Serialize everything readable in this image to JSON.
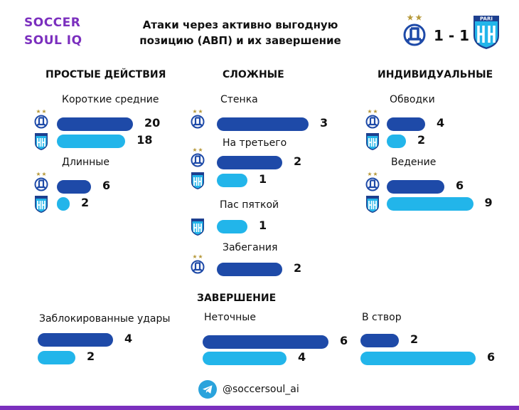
{
  "header": {
    "brand_line1": "SOCCER",
    "brand_line2": "SOUL IQ",
    "title_line1": "Атаки через активно выгодную",
    "title_line2": "позицию (АВП) и их завершение",
    "score": "1 - 1",
    "badge_text": "PARI"
  },
  "footer": {
    "handle": "@soccersoul_ai"
  },
  "colors": {
    "dynamo": "#1e4aa8",
    "pari": "#22b5ea",
    "brand": "#7b2fbe"
  },
  "chart_data": {
    "type": "bar",
    "title": "Атаки через активно выгодную позицию (АВП) и их завершение",
    "series_names": [
      "Динамо",
      "Пари НН"
    ],
    "sections": [
      {
        "name": "ПРОСТЫЕ ДЕЙСТВИЯ",
        "categories": [
          {
            "label": "Короткие  средние",
            "values": [
              20,
              18
            ]
          },
          {
            "label": "Длинные",
            "values": [
              6,
              2
            ]
          }
        ]
      },
      {
        "name": "СЛОЖНЫЕ",
        "categories": [
          {
            "label": "Стенка",
            "values": [
              3,
              null
            ]
          },
          {
            "label": "На третьего",
            "values": [
              2,
              1
            ]
          },
          {
            "label": "Пас  пяткой",
            "values": [
              null,
              1
            ]
          },
          {
            "label": "Забегания",
            "values": [
              2,
              null
            ]
          }
        ]
      },
      {
        "name": "ИНДИВИДУАЛЬНЫЕ",
        "categories": [
          {
            "label": "Обводки",
            "values": [
              4,
              2
            ]
          },
          {
            "label": "Ведение",
            "values": [
              6,
              9
            ]
          }
        ]
      },
      {
        "name": "ЗАВЕРШЕНИЕ",
        "categories": [
          {
            "label": "Заблокированные удары",
            "values": [
              4,
              2
            ]
          },
          {
            "label": "Неточные",
            "values": [
              6,
              4
            ]
          },
          {
            "label": "В створ",
            "values": [
              2,
              6
            ]
          }
        ]
      }
    ]
  }
}
